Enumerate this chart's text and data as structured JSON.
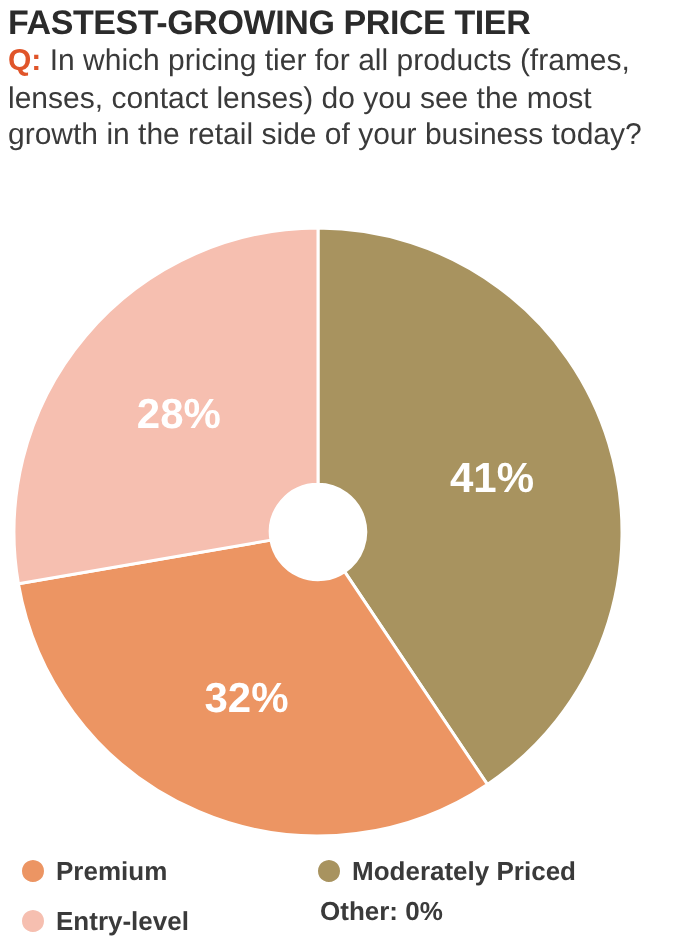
{
  "chart_data": {
    "type": "donut",
    "title": "FASTEST-GROWING PRICE TIER",
    "subtitle": "Q: In which pricing tier for all products (frames, lenses, contact lenses) do you see the most growth in the retail side of your business today?",
    "categories": [
      "Moderately Priced",
      "Premium",
      "Entry-level"
    ],
    "values": [
      41,
      32,
      28
    ],
    "colors": [
      "#a8935f",
      "#ec9563",
      "#f6bfb0"
    ],
    "value_labels": [
      "41%",
      "32%",
      "28%"
    ],
    "legend": "bottom",
    "annotations": [
      "Other: 0%"
    ]
  }
}
